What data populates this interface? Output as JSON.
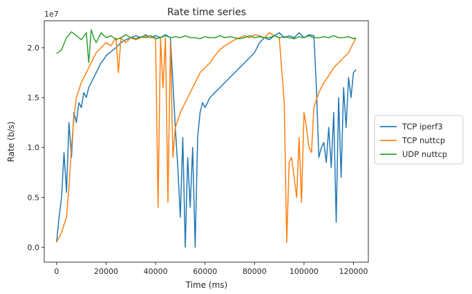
{
  "chart_data": {
    "type": "line",
    "title": "Rate time series",
    "xlabel": "Time (ms)",
    "ylabel": "Rate (b/s)",
    "y_offset_label": "1e7",
    "xlim": [
      -5000,
      126000
    ],
    "ylim": [
      -0.15,
      2.27
    ],
    "xticks": [
      0,
      20000,
      40000,
      60000,
      80000,
      100000,
      120000
    ],
    "xtick_labels": [
      "0",
      "20000",
      "40000",
      "60000",
      "80000",
      "100000",
      "120000"
    ],
    "yticks": [
      0,
      0.5,
      1.0,
      1.5,
      2.0
    ],
    "ytick_labels": [
      "0.0",
      "0.5",
      "1.0",
      "1.5",
      "2.0"
    ],
    "grid": false,
    "legend_position": "right",
    "series": [
      {
        "name": "TCP iperf3",
        "color": "#1f77b4",
        "x": [
          0,
          1000,
          2000,
          3000,
          4000,
          5000,
          6000,
          7000,
          8000,
          9000,
          10000,
          11000,
          12000,
          13000,
          14000,
          15000,
          16000,
          17000,
          18000,
          19000,
          20000,
          22000,
          24000,
          26000,
          28000,
          30000,
          32000,
          34000,
          36000,
          38000,
          40000,
          42000,
          44000,
          46000,
          48000,
          49000,
          50000,
          51000,
          52000,
          53000,
          54000,
          55000,
          56000,
          57000,
          58000,
          59000,
          60000,
          62000,
          64000,
          66000,
          68000,
          70000,
          72000,
          74000,
          76000,
          78000,
          80000,
          82000,
          84000,
          86000,
          88000,
          90000,
          92000,
          94000,
          96000,
          98000,
          100000,
          102000,
          104000,
          105000,
          106000,
          107000,
          108000,
          109000,
          110000,
          111000,
          112000,
          113000,
          114000,
          115000,
          116000,
          117000,
          118000,
          119000,
          120000,
          121000
        ],
        "y": [
          0.05,
          0.3,
          0.5,
          0.95,
          0.55,
          1.25,
          0.9,
          1.35,
          1.25,
          1.45,
          1.4,
          1.55,
          1.5,
          1.6,
          1.65,
          1.7,
          1.75,
          1.8,
          1.85,
          1.88,
          1.92,
          1.96,
          2.0,
          2.05,
          2.08,
          2.1,
          2.12,
          2.1,
          2.13,
          2.1,
          2.12,
          2.1,
          2.13,
          2.1,
          1.2,
          0.8,
          0.3,
          1.1,
          0.0,
          0.9,
          0.4,
          1.0,
          0.0,
          1.1,
          1.35,
          1.45,
          1.4,
          1.5,
          1.55,
          1.6,
          1.65,
          1.7,
          1.75,
          1.8,
          1.85,
          1.9,
          1.95,
          2.05,
          2.1,
          2.08,
          2.12,
          2.15,
          2.1,
          2.12,
          2.1,
          2.15,
          2.1,
          2.13,
          2.12,
          1.6,
          0.9,
          1.0,
          1.05,
          0.85,
          1.2,
          0.8,
          1.35,
          0.25,
          1.5,
          0.7,
          1.6,
          1.2,
          1.7,
          1.5,
          1.75,
          1.78
        ]
      },
      {
        "name": "TCP nuttcp",
        "color": "#ff7f0e",
        "x": [
          0,
          2000,
          4000,
          5000,
          6000,
          7000,
          8000,
          10000,
          12000,
          14000,
          16000,
          18000,
          20000,
          22000,
          24000,
          25000,
          26000,
          28000,
          30000,
          32000,
          34000,
          36000,
          38000,
          40000,
          41000,
          42000,
          43000,
          44000,
          45000,
          46000,
          47000,
          48000,
          50000,
          52000,
          54000,
          56000,
          58000,
          60000,
          62000,
          64000,
          66000,
          68000,
          70000,
          72000,
          74000,
          76000,
          78000,
          80000,
          82000,
          84000,
          86000,
          88000,
          90000,
          92000,
          93000,
          94000,
          95000,
          96000,
          97000,
          98000,
          99000,
          100000,
          101000,
          102000,
          103000,
          104000,
          106000,
          108000,
          110000,
          112000,
          114000,
          116000,
          118000,
          120000,
          121000
        ],
        "y": [
          0.05,
          0.15,
          0.3,
          0.6,
          1.0,
          1.3,
          1.5,
          1.65,
          1.75,
          1.85,
          1.95,
          2.0,
          2.05,
          2.02,
          2.1,
          1.75,
          2.1,
          2.05,
          2.1,
          2.08,
          2.1,
          2.12,
          2.1,
          2.1,
          0.4,
          2.1,
          1.6,
          2.1,
          0.45,
          2.05,
          0.9,
          1.2,
          1.35,
          1.45,
          1.55,
          1.65,
          1.75,
          1.8,
          1.85,
          1.92,
          1.98,
          2.02,
          2.05,
          2.08,
          2.1,
          2.12,
          2.1,
          2.13,
          2.12,
          2.1,
          2.15,
          2.12,
          2.1,
          1.45,
          0.05,
          0.85,
          0.9,
          0.7,
          0.5,
          1.1,
          0.45,
          1.35,
          1.2,
          1.0,
          0.95,
          1.4,
          1.55,
          1.65,
          1.72,
          1.8,
          1.85,
          1.9,
          1.95,
          2.05,
          2.1
        ]
      },
      {
        "name": "UDP nuttcp",
        "color": "#2ca02c",
        "x": [
          0,
          2000,
          4000,
          6000,
          8000,
          10000,
          12000,
          13000,
          14000,
          15000,
          16000,
          18000,
          20000,
          22000,
          24000,
          26000,
          28000,
          30000,
          32000,
          34000,
          36000,
          38000,
          40000,
          42000,
          44000,
          46000,
          48000,
          50000,
          52000,
          54000,
          56000,
          58000,
          60000,
          62000,
          64000,
          66000,
          68000,
          70000,
          72000,
          74000,
          76000,
          78000,
          80000,
          82000,
          84000,
          86000,
          88000,
          90000,
          92000,
          94000,
          96000,
          98000,
          100000,
          102000,
          104000,
          106000,
          108000,
          110000,
          112000,
          114000,
          116000,
          118000,
          120000,
          121000
        ],
        "y": [
          1.94,
          1.98,
          2.1,
          2.16,
          2.12,
          2.08,
          2.15,
          1.85,
          2.18,
          2.1,
          2.05,
          2.15,
          2.1,
          2.12,
          2.08,
          2.1,
          2.13,
          2.1,
          2.09,
          2.11,
          2.1,
          2.12,
          2.09,
          2.1,
          2.12,
          2.1,
          2.11,
          2.1,
          2.12,
          2.1,
          2.1,
          2.09,
          2.11,
          2.1,
          2.1,
          2.12,
          2.1,
          2.11,
          2.1,
          2.09,
          2.1,
          2.12,
          2.1,
          2.11,
          2.1,
          2.1,
          2.12,
          2.1,
          2.11,
          2.1,
          2.09,
          2.11,
          2.1,
          2.12,
          2.1,
          2.1,
          2.11,
          2.1,
          2.12,
          2.1,
          2.1,
          2.11,
          2.09,
          2.1
        ]
      }
    ]
  }
}
